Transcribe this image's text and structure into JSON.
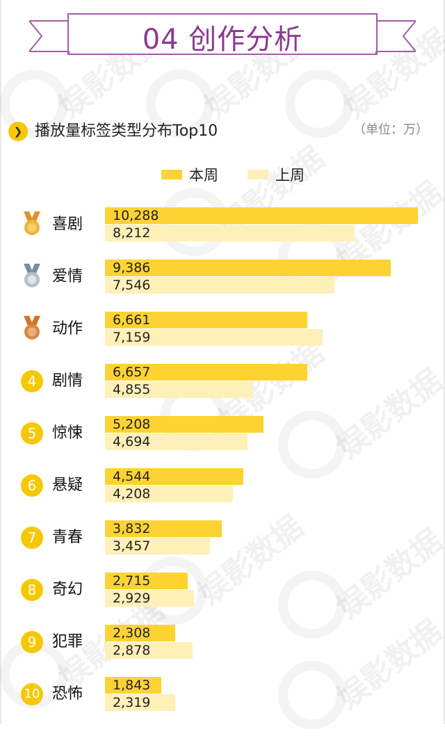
{
  "section_title": "04 创作分析",
  "subtitle": "播放量标签类型分布Top10",
  "unit": "（单位：万）",
  "watermark": "娱影数据",
  "colors": {
    "current": "#fcd333",
    "previous": "#fff0b8",
    "accent": "#8a3b8e",
    "rank": "#f6c800"
  },
  "icons": {
    "subtitle": "chevron-right-icon",
    "gold": "gold-medal-icon",
    "silver": "silver-medal-icon",
    "bronze": "bronze-medal-icon"
  },
  "chart_data": {
    "type": "bar",
    "orientation": "horizontal",
    "legend_position": "top-center",
    "categories": [
      "喜剧",
      "爱情",
      "动作",
      "剧情",
      "惊悚",
      "悬疑",
      "青春",
      "奇幻",
      "犯罪",
      "恐怖"
    ],
    "ranks": [
      "1",
      "2",
      "3",
      "4",
      "5",
      "6",
      "7",
      "8",
      "9",
      "10"
    ],
    "series": [
      {
        "name": "本周",
        "values": [
          10288,
          9386,
          6661,
          6657,
          5208,
          4544,
          3832,
          2715,
          2308,
          1843
        ]
      },
      {
        "name": "上周",
        "values": [
          8212,
          7546,
          7159,
          4855,
          4694,
          4208,
          3457,
          2929,
          2878,
          2319
        ]
      }
    ],
    "xlim": [
      0,
      10288
    ],
    "grid": false
  }
}
